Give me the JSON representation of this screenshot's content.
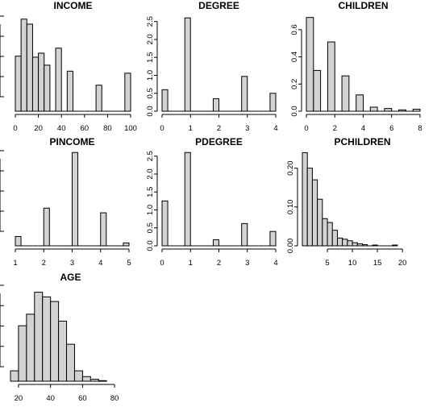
{
  "chart_data": [
    {
      "type": "bar",
      "title": "INCOME",
      "bin_width": 5,
      "bin_start": 0,
      "values": [
        0.55,
        0.92,
        0.87,
        0.54,
        0.58,
        0.46,
        0,
        0.63,
        0,
        0.4,
        0,
        0,
        0,
        0,
        0.26,
        0,
        0,
        0,
        0,
        0.38
      ],
      "x_range": [
        0,
        100
      ],
      "x_ticks": [
        0,
        20,
        40,
        60,
        80,
        100
      ],
      "y_range": [
        0,
        0.95
      ],
      "y_ticks": []
    },
    {
      "type": "bar",
      "title": "DEGREE",
      "bin_width": 0.2,
      "bin_start": 0,
      "values": [
        0.6,
        0,
        0,
        0,
        2.6,
        0,
        0,
        0,
        0,
        0.35,
        0,
        0,
        0,
        0,
        0.97,
        0,
        0,
        0,
        0,
        0.5
      ],
      "x_range": [
        0,
        4
      ],
      "x_ticks": [
        0,
        1,
        2,
        3,
        4
      ],
      "y_range": [
        0,
        2.65
      ],
      "y_ticks": [
        0.0,
        0.5,
        1.0,
        1.5,
        2.0,
        2.5
      ]
    },
    {
      "type": "bar",
      "title": "CHILDREN",
      "bin_width": 0.5,
      "bin_start": 0,
      "values": [
        0.69,
        0.3,
        0,
        0.51,
        0,
        0.26,
        0,
        0.12,
        0,
        0.03,
        0,
        0.02,
        0,
        0.01,
        0,
        0.015
      ],
      "x_range": [
        0,
        8
      ],
      "x_ticks": [
        0,
        2,
        4,
        6,
        8
      ],
      "y_range": [
        0,
        0.7
      ],
      "y_ticks": [
        0.0,
        0.2,
        0.4,
        0.6
      ]
    },
    {
      "type": "bar",
      "title": "PINCOME",
      "bin_width": 0.2,
      "bin_start": 1,
      "values": [
        0.26,
        0,
        0,
        0,
        0,
        1.05,
        0,
        0,
        0,
        0,
        2.6,
        0,
        0,
        0,
        0,
        0.92,
        0,
        0,
        0,
        0.08
      ],
      "x_range": [
        1,
        5
      ],
      "x_ticks": [
        1,
        2,
        3,
        4,
        5
      ],
      "y_range": [
        0,
        2.65
      ],
      "y_ticks": []
    },
    {
      "type": "bar",
      "title": "PDEGREE",
      "bin_width": 0.2,
      "bin_start": 0,
      "values": [
        1.25,
        0,
        0,
        0,
        2.6,
        0,
        0,
        0,
        0,
        0.17,
        0,
        0,
        0,
        0,
        0.62,
        0,
        0,
        0,
        0,
        0.4
      ],
      "x_range": [
        0,
        4
      ],
      "x_ticks": [
        0,
        1,
        2,
        3,
        4
      ],
      "y_range": [
        0,
        2.65
      ],
      "y_ticks": [
        0.0,
        0.5,
        1.0,
        1.5,
        2.0,
        2.5
      ]
    },
    {
      "type": "bar",
      "title": "PCHILDREN",
      "bin_width": 1,
      "bin_start": 0,
      "values": [
        0.24,
        0.2,
        0.17,
        0.12,
        0.07,
        0.06,
        0.04,
        0.02,
        0.017,
        0.013,
        0.008,
        0.005,
        0.003,
        0,
        0.002,
        0,
        0,
        0,
        0.002
      ],
      "x_range": [
        0,
        24
      ],
      "x_ticks": [
        5,
        10,
        15,
        20
      ],
      "y_range": [
        0,
        0.245
      ],
      "y_ticks": [
        0.0,
        0.1,
        0.2
      ]
    },
    {
      "type": "bar",
      "title": "AGE",
      "bin_width": 5,
      "bin_start": 15,
      "values": [
        0.09,
        0.48,
        0.58,
        0.77,
        0.73,
        0.69,
        0.52,
        0.32,
        0.09,
        0.04,
        0.017,
        0.005
      ],
      "x_range": [
        15,
        90
      ],
      "x_ticks": [
        20,
        40,
        60,
        80
      ],
      "y_range": [
        0,
        0.83
      ],
      "y_ticks": []
    }
  ]
}
